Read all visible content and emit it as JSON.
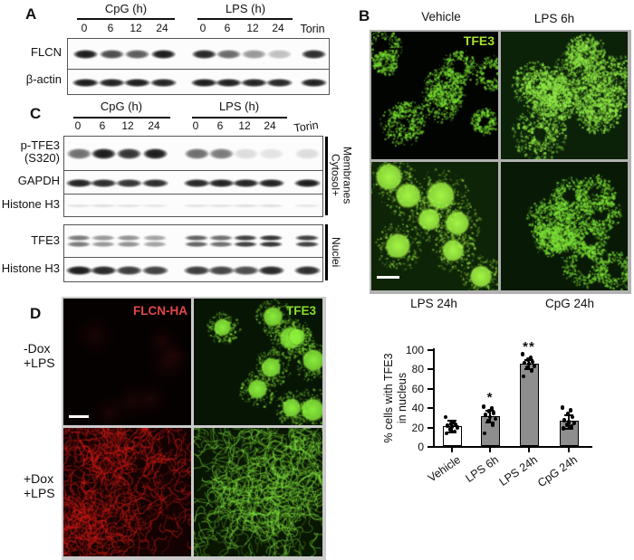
{
  "panels": {
    "A": {
      "letter": "A",
      "groups": [
        {
          "label": "CpG (h)",
          "lanes": [
            "0",
            "6",
            "12",
            "24"
          ]
        },
        {
          "label": "LPS (h)",
          "lanes": [
            "0",
            "6",
            "12",
            "24"
          ]
        }
      ],
      "last_lane": "Torin",
      "rows": [
        {
          "label": "FLCN",
          "band_h": 10,
          "band_w": 27,
          "bands": [
            0.95,
            0.75,
            0.68,
            0.95,
            0.9,
            0.62,
            0.42,
            0.25,
            0.88
          ]
        },
        {
          "label": "β-actin",
          "band_h": 9,
          "band_w": 29,
          "bands": [
            0.95,
            0.93,
            0.95,
            0.92,
            0.95,
            0.93,
            0.92,
            0.9,
            0.93
          ]
        }
      ]
    },
    "C": {
      "letter": "C",
      "groups": [
        {
          "label": "CpG (h)",
          "lanes": [
            "0",
            "6",
            "12",
            "24"
          ]
        },
        {
          "label": "LPS (h)",
          "lanes": [
            "0",
            "6",
            "12",
            "24"
          ]
        }
      ],
      "last_lane": "Torin",
      "blocks": [
        {
          "bracket": "Cytosol+\nMembranes",
          "rows": [
            {
              "label": "p-TFE3\n(S320)",
              "band_h": 12,
              "band_w": 27,
              "bands": [
                0.6,
                0.95,
                0.85,
                0.95,
                0.6,
                0.55,
                0.13,
                0.1,
                0.13
              ]
            },
            {
              "label": "GAPDH",
              "band_h": 9,
              "band_w": 29,
              "bands": [
                0.92,
                0.88,
                0.85,
                0.88,
                0.9,
                0.92,
                0.92,
                0.92,
                0.95
              ]
            },
            {
              "label": "Histone H3",
              "band_h": 3,
              "band_w": 30,
              "bands": [
                0.12,
                0.14,
                0.12,
                0.1,
                0.12,
                0.12,
                0.14,
                0.13,
                0.1
              ]
            }
          ]
        },
        {
          "bracket": "Nuclei",
          "rows": [
            {
              "label": "TFE3",
              "band_h": 6,
              "band_w": 26,
              "doublet": true,
              "bands": [
                0.55,
                0.42,
                0.45,
                0.38,
                0.65,
                0.6,
                0.8,
                0.85,
                0.8
              ]
            },
            {
              "label": "Histone H3",
              "band_h": 10,
              "band_w": 29,
              "bands": [
                0.95,
                0.9,
                0.82,
                0.8,
                0.82,
                0.78,
                0.75,
                0.9,
                0.88
              ]
            }
          ]
        }
      ]
    },
    "B": {
      "letter": "B",
      "channel_label": "TFE3",
      "channel_color": "#a5e22e",
      "tiles": [
        {
          "caption": "Vehicle",
          "caption_pos": "top",
          "appearance": "sparse cytoplasmic reticular TFE3",
          "render": {
            "type": "reticular",
            "bg": "#020402",
            "color": "120,225,50",
            "cells": 10,
            "rmin": 12,
            "rmax": 22,
            "specks": 240,
            "seed": 7
          }
        },
        {
          "caption": "LPS 6h",
          "caption_pos": "top",
          "appearance": "bright cytoplasmic TFE3",
          "render": {
            "type": "cyto",
            "bg": "#0b2108",
            "color": "145,235,70",
            "cells": 9,
            "rmin": 20,
            "rmax": 30,
            "specks": 520,
            "seed": 15
          }
        },
        {
          "caption": "LPS 24h",
          "caption_pos": "bottom",
          "appearance": "strong nuclear TFE3",
          "render": {
            "type": "nuclear",
            "bg": "#0e2407",
            "color": "165,250,70",
            "cells": 8,
            "rmin": 22,
            "rmax": 30,
            "seed": 23
          }
        },
        {
          "caption": "CpG 24h",
          "caption_pos": "bottom",
          "appearance": "cytoplasmic reticular TFE3",
          "render": {
            "type": "reticular",
            "bg": "#081a05",
            "color": "125,225,55",
            "cells": 11,
            "rmin": 14,
            "rmax": 26,
            "specks": 300,
            "seed": 31
          }
        }
      ]
    },
    "D": {
      "letter": "D",
      "rows": [
        {
          "lines": [
            "-Dox",
            "+LPS"
          ]
        },
        {
          "lines": [
            "+Dox",
            "+LPS"
          ]
        }
      ],
      "overlays": [
        {
          "label": "FLCN-HA",
          "color": "#e04848"
        },
        {
          "label": "TFE3",
          "color": "#86e02a"
        }
      ],
      "tiles": [
        {
          "channel": "red",
          "appearance": "no FLCN-HA signal",
          "render": {
            "type": "faint",
            "bg": "#060101",
            "color": "200,40,40",
            "cells": 7,
            "rmin": 20,
            "rmax": 34,
            "seed": 41
          }
        },
        {
          "channel": "green",
          "appearance": "nuclear TFE3",
          "render": {
            "type": "nuclear",
            "bg": "#071504",
            "color": "140,240,60",
            "cells": 9,
            "rmin": 16,
            "rmax": 24,
            "seed": 47
          }
        },
        {
          "channel": "red",
          "appearance": "reticular FLCN-HA signal",
          "render": {
            "type": "filament",
            "bg": "#140202",
            "color": "225,30,25",
            "cells": 6,
            "rmin": 40,
            "rmax": 68,
            "fil": 95,
            "seed": 53
          }
        },
        {
          "channel": "green",
          "appearance": "cytoplasmic reticular TFE3",
          "render": {
            "type": "filament",
            "bg": "#081602",
            "color": "135,235,65",
            "cells": 6,
            "rmin": 40,
            "rmax": 68,
            "fil": 95,
            "seed": 59
          }
        }
      ]
    }
  },
  "chart_data": {
    "type": "bar",
    "categories": [
      "Vehicle",
      "LPS 6h",
      "LPS 24h",
      "CpG 24h"
    ],
    "values": [
      21,
      31,
      85,
      26
    ],
    "sd": [
      6,
      6,
      5,
      7
    ],
    "points": [
      [
        13,
        15,
        17,
        19,
        20,
        21,
        22,
        23,
        25,
        30
      ],
      [
        13,
        22,
        26,
        28,
        30,
        32,
        34,
        36,
        39,
        41
      ],
      [
        72,
        78,
        81,
        83,
        85,
        86,
        87,
        89,
        91,
        95
      ],
      [
        18,
        20,
        22,
        24,
        25,
        27,
        30,
        33,
        37,
        40
      ]
    ],
    "significance": [
      "",
      "*",
      "**",
      ""
    ],
    "ylabel": "% cells with TFE3\nin nucleus",
    "ylim": [
      0,
      100
    ],
    "yticks": [
      0,
      20,
      40,
      60,
      80,
      100
    ],
    "bar_colors": [
      "#ffffff",
      "#8e8e8e",
      "#8e8e8e",
      "#8e8e8e"
    ],
    "grid": false,
    "legend": null
  }
}
